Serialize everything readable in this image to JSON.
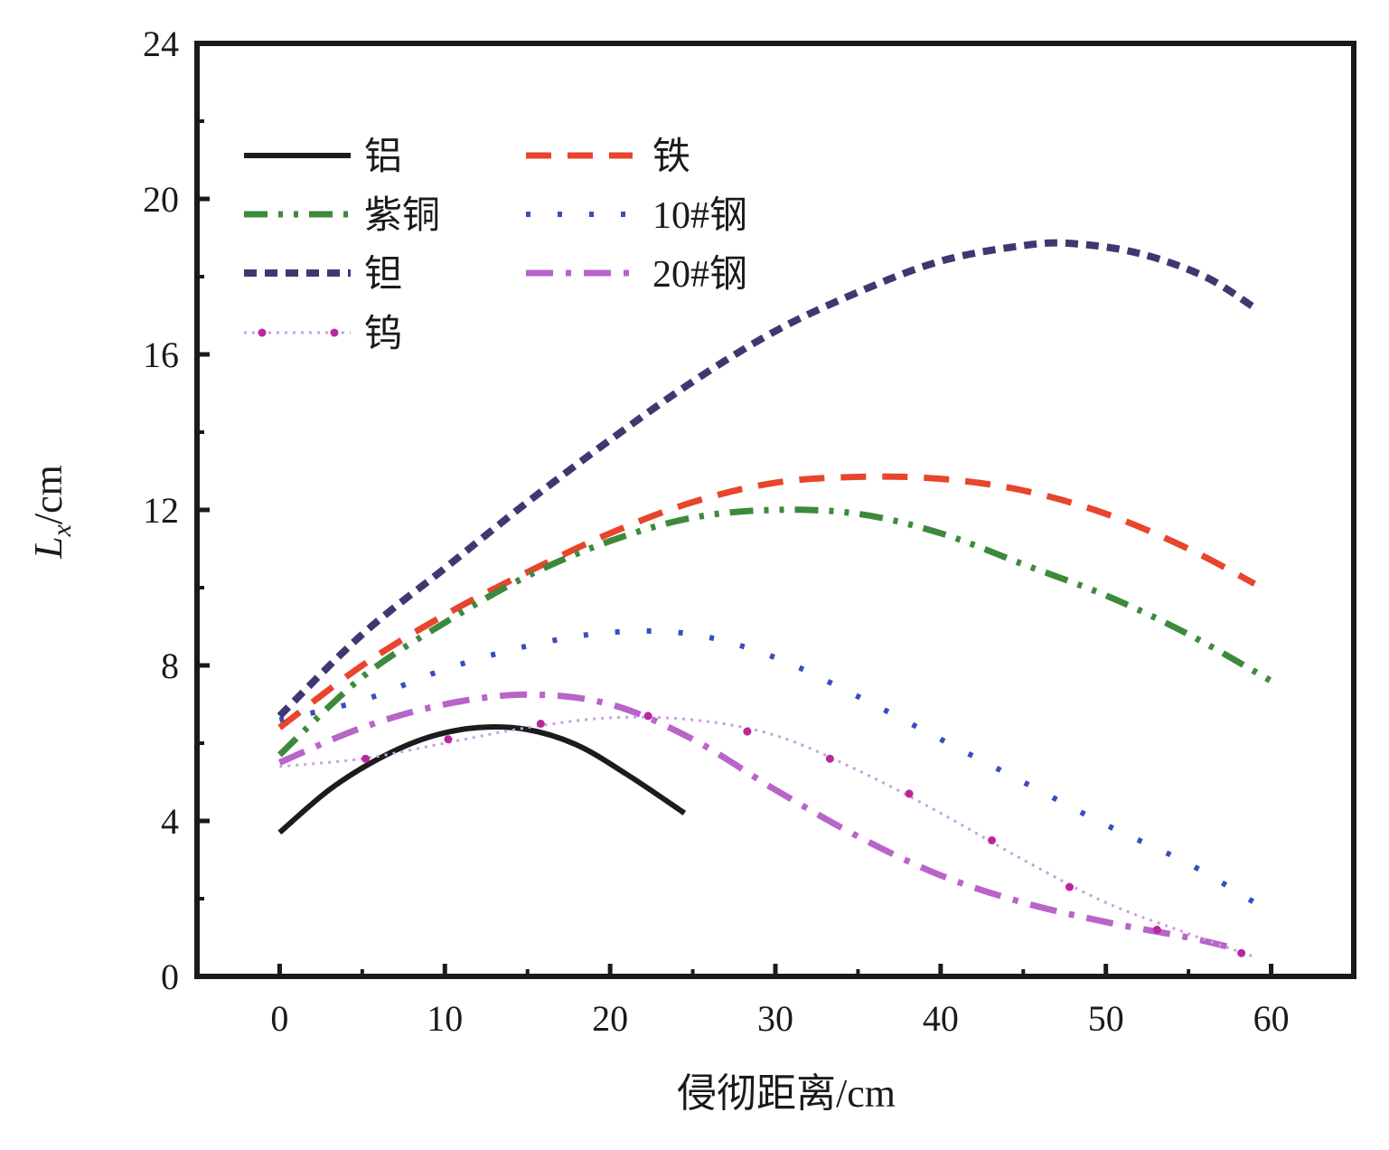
{
  "chart_data": {
    "type": "line",
    "xlabel": "侵彻距离/cm",
    "ylabel_main": "L",
    "ylabel_sub": "x",
    "ylabel_unit": "/cm",
    "xlim": [
      -5,
      65
    ],
    "ylim": [
      0,
      24
    ],
    "xticks": [
      0,
      10,
      20,
      30,
      40,
      50,
      60
    ],
    "yticks": [
      0,
      4,
      8,
      12,
      16,
      20,
      24
    ],
    "legend": {
      "position": "top-left",
      "columns": 2
    },
    "series": [
      {
        "name": "铝",
        "color": "#1c1c1c",
        "style": "solid",
        "x": [
          0,
          3,
          6,
          9,
          12,
          15,
          18,
          21,
          24.5
        ],
        "y": [
          3.7,
          4.8,
          5.6,
          6.15,
          6.4,
          6.35,
          5.95,
          5.2,
          4.2
        ]
      },
      {
        "name": "铁",
        "color": "#e8452c",
        "style": "dash",
        "x": [
          0,
          5,
          10,
          15,
          20,
          25,
          30,
          35,
          40,
          45,
          50,
          55,
          59
        ],
        "y": [
          6.4,
          8.0,
          9.3,
          10.4,
          11.4,
          12.2,
          12.7,
          12.85,
          12.8,
          12.5,
          11.9,
          11.0,
          10.1
        ]
      },
      {
        "name": "紫铜",
        "color": "#3d8a3d",
        "style": "dashdotdot",
        "x": [
          0,
          5,
          10,
          15,
          20,
          25,
          30,
          35,
          40,
          45,
          50,
          55,
          60
        ],
        "y": [
          5.7,
          7.7,
          9.1,
          10.3,
          11.2,
          11.8,
          12.0,
          11.9,
          11.4,
          10.6,
          9.8,
          8.8,
          7.6
        ]
      },
      {
        "name": "10#钢",
        "color": "#3a4cc0",
        "style": "dot",
        "x": [
          0,
          5,
          10,
          15,
          20,
          25,
          30,
          35,
          40,
          45,
          50,
          55,
          59
        ],
        "y": [
          6.6,
          7.1,
          7.9,
          8.5,
          8.85,
          8.8,
          8.2,
          7.2,
          6.1,
          5.0,
          3.9,
          2.9,
          1.9
        ]
      },
      {
        "name": "钽",
        "color": "#3d3970",
        "style": "shortdash",
        "x": [
          0,
          5,
          10,
          15,
          20,
          25,
          30,
          35,
          40,
          45,
          48,
          52,
          56,
          59
        ],
        "y": [
          6.7,
          8.8,
          10.5,
          12.2,
          13.8,
          15.3,
          16.6,
          17.6,
          18.4,
          18.8,
          18.85,
          18.6,
          18.0,
          17.2
        ]
      },
      {
        "name": "20#钢",
        "color": "#b864c8",
        "style": "dashdot",
        "x": [
          0,
          5,
          10,
          15,
          20,
          25,
          30,
          35,
          40,
          45,
          50,
          55,
          58
        ],
        "y": [
          5.5,
          6.4,
          7.0,
          7.25,
          7.0,
          6.1,
          4.8,
          3.6,
          2.6,
          1.9,
          1.4,
          1.0,
          0.7
        ]
      },
      {
        "name": "钨",
        "color": "#c8a0dc",
        "marker_color": "#b8289c",
        "style": "dotmarker",
        "x": [
          0,
          5,
          10,
          15,
          20,
          25,
          30,
          35,
          40,
          45,
          50,
          55,
          59
        ],
        "y": [
          5.4,
          5.6,
          6.0,
          6.4,
          6.65,
          6.6,
          6.2,
          5.3,
          4.2,
          3.0,
          1.9,
          1.1,
          0.5
        ],
        "markers_x": [
          5.2,
          10.2,
          15.8,
          22.3,
          28.3,
          33.3,
          38.1,
          43.1,
          47.8,
          53.1,
          58.2
        ],
        "markers_y": [
          5.6,
          6.1,
          6.5,
          6.7,
          6.3,
          5.6,
          4.7,
          3.5,
          2.3,
          1.2,
          0.6
        ]
      }
    ]
  }
}
